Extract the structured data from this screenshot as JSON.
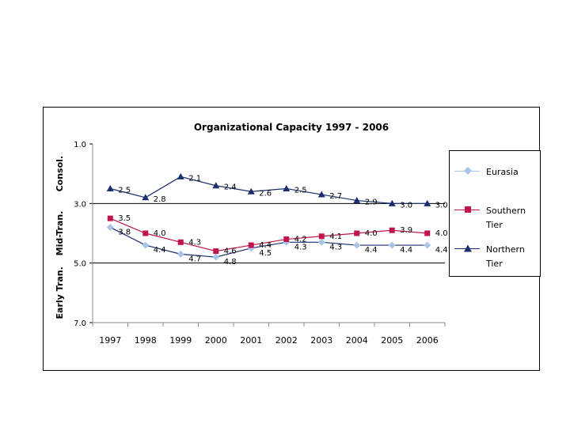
{
  "chart_data": {
    "type": "line",
    "title": "Organizational Capacity 1997 - 2006",
    "categories": [
      "1997",
      "1998",
      "1999",
      "2000",
      "2001",
      "2002",
      "2003",
      "2004",
      "2005",
      "2006"
    ],
    "ylim": [
      1.0,
      7.0
    ],
    "y_inverted": true,
    "yticks": [
      "1.0",
      "3.0",
      "5.0",
      "7.0"
    ],
    "y_band_labels": [
      "Consol.",
      "Mid-Tran.",
      "Early Tran."
    ],
    "series": [
      {
        "name": "Eurasia",
        "color": "#A8C4E8",
        "marker": "diamond",
        "values": [
          3.8,
          4.4,
          4.7,
          4.8,
          4.5,
          4.3,
          4.3,
          4.4,
          4.4,
          4.4
        ],
        "labels": [
          "3.8",
          "4.4",
          "4.7",
          "4.8",
          "4.5",
          "4.3",
          "4.3",
          "4.4",
          "4.4",
          "4.4"
        ]
      },
      {
        "name": "Southern Tier",
        "color": "#C0144A",
        "marker": "square",
        "values": [
          3.5,
          4.0,
          4.3,
          4.6,
          4.4,
          4.2,
          4.1,
          4.0,
          3.9,
          4.0
        ],
        "labels": [
          "3.5",
          "4.0",
          "4.3",
          "4.6",
          "4.4",
          "4.2",
          "4.1",
          "4.0",
          "3.9",
          "4.0"
        ]
      },
      {
        "name": "Northern Tier",
        "color": "#1B2F6E",
        "marker": "triangle",
        "values": [
          2.5,
          2.8,
          2.1,
          2.4,
          2.6,
          2.5,
          2.7,
          2.9,
          3.0,
          3.0
        ],
        "labels": [
          "2.5",
          "2.8",
          "2.1",
          "2.4",
          "2.6",
          "2.5",
          "2.7",
          "2.9",
          "3.0",
          "3.0"
        ]
      }
    ],
    "legend": {
      "position": "right",
      "items": [
        "Eurasia",
        "Southern Tier",
        "Northern Tier"
      ]
    }
  }
}
